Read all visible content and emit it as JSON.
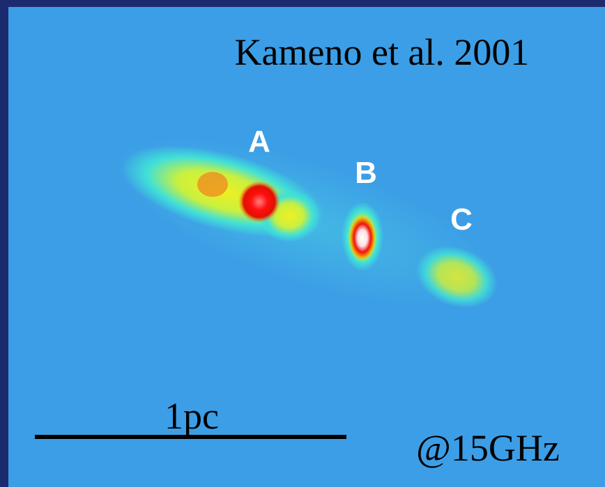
{
  "title": "Kameno et al. 2001",
  "components": [
    "A",
    "B",
    "C"
  ],
  "scale_bar": "1pc",
  "frequency": "@15GHz"
}
